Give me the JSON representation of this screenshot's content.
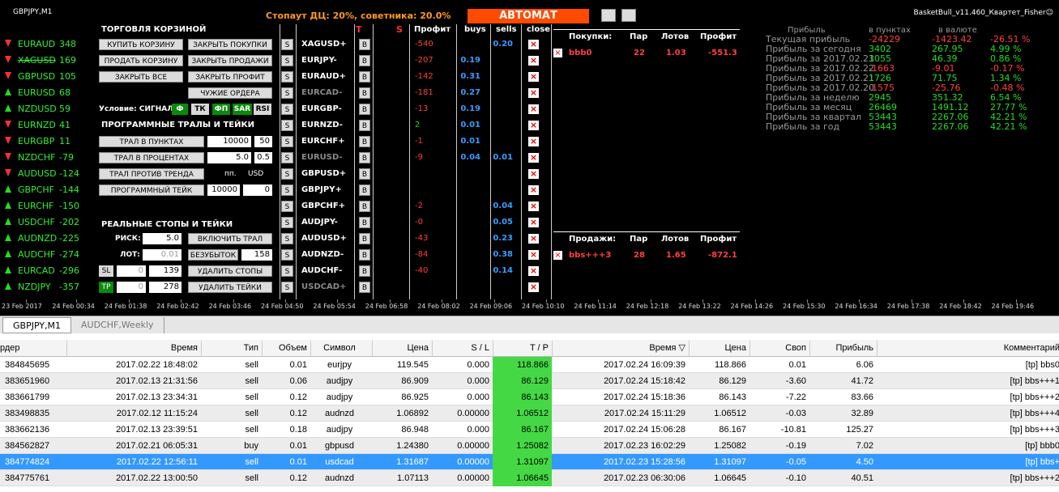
{
  "header": {
    "symbol": "GBPJPY,M1",
    "stopout": "Стопаут ДЦ: 20%, советника: 20.0%",
    "mode": "АВТОМАТ",
    "version": "BasketBull_v11.460_Квартет_Fisher☺"
  },
  "pairs": [
    {
      "name": "EURAUD",
      "value": "348",
      "dir": "down"
    },
    {
      "name": "XAGUSD",
      "value": "169",
      "dir": "down"
    },
    {
      "name": "GBPUSD",
      "value": "105",
      "dir": "down"
    },
    {
      "name": "EURUSD",
      "value": "68",
      "dir": "up"
    },
    {
      "name": "NZDUSD",
      "value": "59",
      "dir": "up"
    },
    {
      "name": "EURNZD",
      "value": "41",
      "dir": "down"
    },
    {
      "name": "EURGBP",
      "value": "11",
      "dir": "down"
    },
    {
      "name": "NZDCHF",
      "value": "-79",
      "dir": "down"
    },
    {
      "name": "AUDUSD",
      "value": "-124",
      "dir": "down"
    },
    {
      "name": "GBPCHF",
      "value": "-144",
      "dir": "up"
    },
    {
      "name": "EURCHF",
      "value": "-150",
      "dir": "up"
    },
    {
      "name": "USDCHF",
      "value": "-202",
      "dir": "up"
    },
    {
      "name": "AUDNZD",
      "value": "-225",
      "dir": "up"
    },
    {
      "name": "AUDCHF",
      "value": "-274",
      "dir": "up"
    },
    {
      "name": "EURCAD",
      "value": "-296",
      "dir": "up"
    },
    {
      "name": "NZDJPY",
      "value": "-357",
      "dir": "up"
    }
  ],
  "panel": {
    "title": "ТОРГОВЛЯ КОРЗИНОЙ",
    "buy_basket": "КУПИТЬ КОРЗИНУ",
    "close_buys": "ЗАКРЫТЬ ПОКУПКИ",
    "sell_basket": "ПРОДАТЬ КОРЗИНУ",
    "close_sells": "ЗАКРЫТЬ ПРОДАЖИ",
    "close_all": "ЗАКРЫТЬ ВСЕ",
    "close_profit": "ЗАКРЫТЬ ПРОФИТ",
    "foreign": "ЧУЖИЕ ОРДЕРА",
    "condition": "Условие: СИГНАЛ+",
    "filters": [
      {
        "label": "Ф",
        "active": true
      },
      {
        "label": "ТК",
        "active": false
      },
      {
        "label": "ФП",
        "active": true
      },
      {
        "label": "SAR",
        "active": true
      },
      {
        "label": "RSI",
        "active": false
      }
    ],
    "trail_title": "ПРОГРАММНЫЕ ТРАЛЫ И ТЕЙКИ",
    "trail_points": {
      "label": "ТРАЛ В ПУНКТАХ",
      "v1": "10000",
      "v2": "50"
    },
    "trail_percent": {
      "label": "ТРАЛ В ПРОЦЕНТАХ",
      "v1": "5.0",
      "v2": "0.5"
    },
    "trail_counter": {
      "label": "ТРАЛ ПРОТИВ ТРЕНДА",
      "u1": "пп.",
      "u2": "USD"
    },
    "prog_take": {
      "label": "ПРОГРАММНЫЙ ТЕЙК",
      "v1": "10000",
      "v2": "0"
    },
    "stops_title": "РЕАЛЬНЫЕ СТОПЫ И ТЕЙКИ",
    "risk": {
      "label": "РИСК:",
      "value": "5.0",
      "button": "ВКЛЮЧИТЬ ТРАЛ"
    },
    "lot": {
      "label": "ЛОТ:",
      "value": "0.01",
      "button": "БЕЗУБЫТОК",
      "v2": "158"
    },
    "sl": {
      "label": "SL",
      "v1": "0",
      "v2": "139",
      "button": "УДАЛИТЬ СТОПЫ"
    },
    "tp": {
      "label": "TP",
      "v1": "0",
      "v2": "278",
      "button": "УДАЛИТЬ ТЕЙКИ"
    }
  },
  "grid": {
    "s_label": "S",
    "b_label": "B",
    "close_label": "×",
    "headers": {
      "t": "T",
      "s": "S",
      "profit": "Профит",
      "buys": "buys",
      "sells": "sells",
      "close": "close"
    },
    "rows": [
      {
        "symbol": "XAGUSD+",
        "profit": "-540",
        "sells": "0.20"
      },
      {
        "symbol": "EURJPY-",
        "profit": "-207",
        "buys": "0.19"
      },
      {
        "symbol": "EURAUD+",
        "profit": "-142",
        "buys": "0.31"
      },
      {
        "symbol": "EURCAD-",
        "profit": "-181",
        "buys": "0.27",
        "muted": true
      },
      {
        "symbol": "EURGBP-",
        "profit": "-13",
        "buys": "0.19"
      },
      {
        "symbol": "EURNZD-",
        "profit": "2",
        "buys": "0.01"
      },
      {
        "symbol": "EURCHF+",
        "profit": "-1",
        "buys": "0.01"
      },
      {
        "symbol": "EURUSD-",
        "profit": "-9",
        "buys": "0.04",
        "sells": "0.01",
        "muted": true
      },
      {
        "symbol": "GBPUSD+"
      },
      {
        "symbol": "GBPJPY+"
      },
      {
        "symbol": "GBPCHF+",
        "profit": "-2",
        "sells": "0.04"
      },
      {
        "symbol": "AUDJPY-",
        "profit": "-0",
        "sells": "0.05"
      },
      {
        "symbol": "AUDUSD+",
        "profit": "-43",
        "sells": "0.23"
      },
      {
        "symbol": "AUDNZD-",
        "profit": "-84",
        "sells": "0.38"
      },
      {
        "symbol": "AUDCHF-",
        "profit": "-40",
        "sells": "0.14"
      },
      {
        "symbol": "USDCAD+",
        "muted": true
      }
    ]
  },
  "buys": {
    "title": "Покупки:",
    "h_pairs": "Пар",
    "h_lots": "Лотов",
    "h_profit": "Профит",
    "name": "bbb0",
    "pairs": "22",
    "lots": "1.03",
    "profit": "-551.3"
  },
  "sells": {
    "title": "Продажи:",
    "h_pairs": "Пар",
    "h_lots": "Лотов",
    "h_profit": "Профит",
    "name": "bbs+++3",
    "pairs": "28",
    "lots": "1.65",
    "profit": "-872.1"
  },
  "stats": {
    "headers": [
      "Прибыль",
      "в пунктах",
      "в валюте"
    ],
    "rows": [
      [
        "Текущая прибыль",
        "-24229",
        "-1423.42",
        "-26.51 %"
      ],
      [
        "Прибыль за сегодня",
        "3402",
        "267.95",
        "4.99 %"
      ],
      [
        "Прибыль за 2017.02.23",
        "1055",
        "46.39",
        "0.86 %"
      ],
      [
        "Прибыль за 2017.02.22",
        "-1663",
        "-9.01",
        "-0.17 %"
      ],
      [
        "Прибыль за 2017.02.21",
        "1726",
        "71.75",
        "1.34 %"
      ],
      [
        "Прибыль за 2017.02.20",
        "-1575",
        "-25.76",
        "-0.48 %"
      ],
      [
        "Прибыль за неделю",
        "2945",
        "351.32",
        "6.54 %"
      ],
      [
        "Прибыль за месяц",
        "26469",
        "1491.12",
        "27.77 %"
      ],
      [
        "Прибыль за квартал",
        "53443",
        "2267.06",
        "42.21 %"
      ],
      [
        "Прибыль за год",
        "53443",
        "2267.06",
        "42.21 %"
      ]
    ]
  },
  "time_axis": [
    "23 Feb 2017",
    "24 Feb 00:34",
    "24 Feb 01:38",
    "24 Feb 02:42",
    "24 Feb 03:46",
    "24 Feb 04:50",
    "24 Feb 05:54",
    "24 Feb 06:58",
    "24 Feb 08:02",
    "24 Feb 09:06",
    "24 Feb 10:10",
    "24 Feb 11:14",
    "24 Feb 12:18",
    "24 Feb 13:22",
    "24 Feb 14:26",
    "24 Feb 15:30",
    "24 Feb 16:34",
    "24 Feb 17:38",
    "24 Feb 18:42",
    "24 Feb 19:46"
  ],
  "tabs": [
    "GBPJPY,M1",
    "AUDCHF,Weekly"
  ],
  "table": {
    "columns": [
      "рдер",
      "Время",
      "Тип",
      "Объем",
      "Символ",
      "Цена",
      "S / L",
      "T / P",
      "Время ▽",
      "Цена",
      "Своп",
      "Прибыль",
      "Комментарий"
    ],
    "selected": 6,
    "rows": [
      [
        "384845695",
        "2017.02.22 18:48:02",
        "sell",
        "0.01",
        "eurjpy",
        "119.545",
        "0.000",
        "118.866",
        "2017.02.24 16:09:39",
        "118.866",
        "0.01",
        "6.06",
        "[tp]  bbs0"
      ],
      [
        "383651960",
        "2017.02.13 21:31:56",
        "sell",
        "0.06",
        "audjpy",
        "86.909",
        "0.000",
        "86.129",
        "2017.02.24 15:18:42",
        "86.129",
        "-3.60",
        "41.72",
        "[tp]  bbs+++1"
      ],
      [
        "383661799",
        "2017.02.13 23:34:31",
        "sell",
        "0.12",
        "audjpy",
        "86.925",
        "0.000",
        "86.143",
        "2017.02.24 15:18:36",
        "86.143",
        "-7.22",
        "83.66",
        "[tp]  bbs+++2"
      ],
      [
        "383498835",
        "2017.02.12 11:15:24",
        "sell",
        "0.12",
        "audnzd",
        "1.06892",
        "0.00000",
        "1.06512",
        "2017.02.24 15:11:29",
        "1.06512",
        "-0.03",
        "32.89",
        "[tp]  bbs+++4"
      ],
      [
        "383662136",
        "2017.02.13 23:39:51",
        "sell",
        "0.18",
        "audjpy",
        "86.948",
        "0.000",
        "86.167",
        "2017.02.24 15:06:28",
        "86.167",
        "-10.81",
        "125.27",
        "[tp]  bbs+++3"
      ],
      [
        "384562827",
        "2017.02.21 06:05:31",
        "buy",
        "0.01",
        "gbpusd",
        "1.24380",
        "0.00000",
        "1.25082",
        "2017.02.23 16:02:29",
        "1.25082",
        "-0.19",
        "7.02",
        "[tp]  bbb0"
      ],
      [
        "384774824",
        "2017.02.22 12:56:11",
        "sell",
        "0.01",
        "usdcad",
        "1.31687",
        "0.00000",
        "1.31097",
        "2017.02.23 15:28:56",
        "1.31097",
        "-0.05",
        "4.50",
        "[tp]  bbs+"
      ],
      [
        "384775761",
        "2017.02.22 13:00:50",
        "sell",
        "0.12",
        "audnzd",
        "1.07113",
        "0.00000",
        "1.06645",
        "2017.02.23 06:30:06",
        "1.06645",
        "-0.10",
        "40.51",
        "[tp]  bbs+++2"
      ]
    ]
  }
}
